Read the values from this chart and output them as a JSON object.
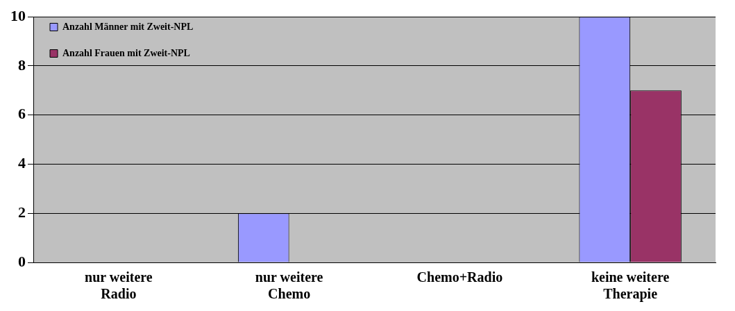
{
  "chart_data": {
    "type": "bar",
    "categories": [
      "nur weitere Radio",
      "nur weitere Chemo",
      "Chemo+Radio",
      "keine weitere Therapie"
    ],
    "series": [
      {
        "name": "Anzahl Männer mit Zweit-NPL",
        "color": "#9999ff",
        "values": [
          0,
          2,
          0,
          10
        ]
      },
      {
        "name": "Anzahl Frauen mit Zweit-NPL",
        "color": "#993366",
        "values": [
          0,
          0,
          0,
          7
        ]
      }
    ],
    "ylim": [
      0,
      10
    ],
    "yticks": [
      0,
      2,
      4,
      6,
      8,
      10
    ],
    "grid": "y",
    "legend": "top left"
  }
}
